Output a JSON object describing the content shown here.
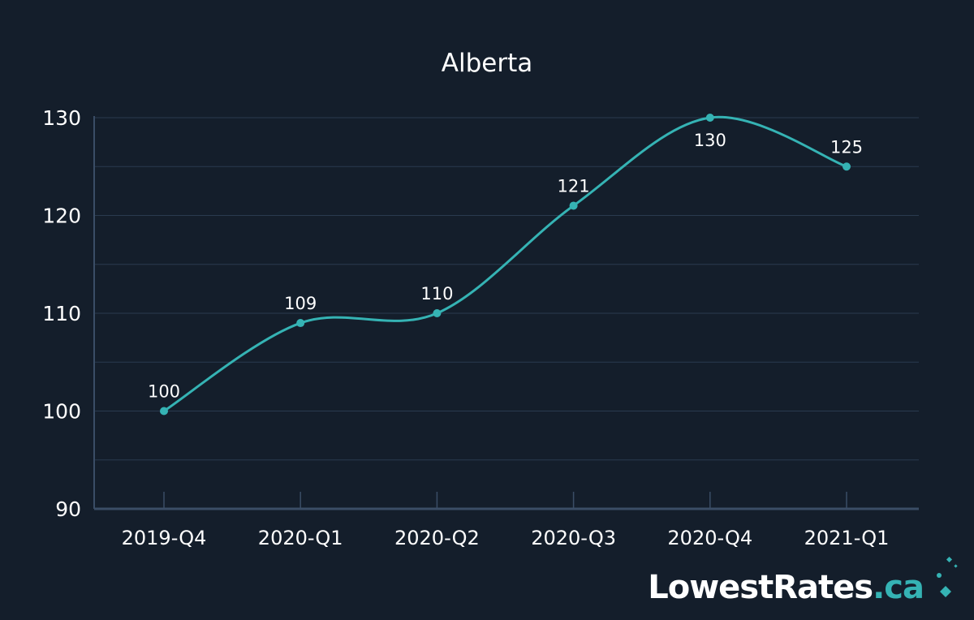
{
  "chart_data": {
    "type": "line",
    "title": "Alberta",
    "xlabel": "",
    "ylabel": "",
    "categories": [
      "2019-Q4",
      "2020-Q1",
      "2020-Q2",
      "2020-Q3",
      "2020-Q4",
      "2021-Q1"
    ],
    "series": [
      {
        "values": [
          100,
          109,
          110,
          121,
          130,
          125
        ]
      }
    ],
    "data_labels": [
      "100",
      "109",
      "110",
      "121",
      "130",
      "125"
    ],
    "ylim": [
      90,
      130
    ],
    "yticks": [
      90,
      100,
      110,
      120,
      130
    ],
    "ytick_labels": [
      "90",
      "100",
      "110",
      "120",
      "130"
    ],
    "grid": true,
    "smooth": true
  },
  "brand": {
    "name_main": "LowestRates",
    "name_tld": ".ca"
  },
  "colors": {
    "background": "#141e2b",
    "line": "#35b3b4",
    "grid": "#2a3a4f",
    "axis": "#3a4d66",
    "text": "#ffffff",
    "brand_accent": "#35b3b4"
  }
}
